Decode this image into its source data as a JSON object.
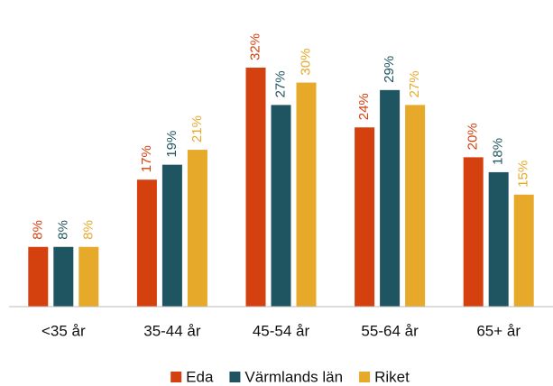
{
  "chart_data": {
    "type": "bar",
    "categories": [
      "<35 år",
      "35-44 år",
      "45-54 år",
      "55-64 år",
      "65+ år"
    ],
    "series": [
      {
        "name": "Eda",
        "color": "#d4410f",
        "values": [
          8,
          17,
          32,
          24,
          20
        ],
        "value_labels": [
          "8%",
          "17%",
          "32%",
          "24%",
          "20%"
        ]
      },
      {
        "name": "Värmlands län",
        "color": "#1f5560",
        "values": [
          8,
          19,
          27,
          29,
          18
        ],
        "value_labels": [
          "8%",
          "19%",
          "27%",
          "29%",
          "18%"
        ]
      },
      {
        "name": "Riket",
        "color": "#e7a92a",
        "values": [
          8,
          21,
          30,
          27,
          15
        ],
        "value_labels": [
          "8%",
          "21%",
          "30%",
          "27%",
          "15%"
        ]
      }
    ],
    "legend": "bottom"
  }
}
